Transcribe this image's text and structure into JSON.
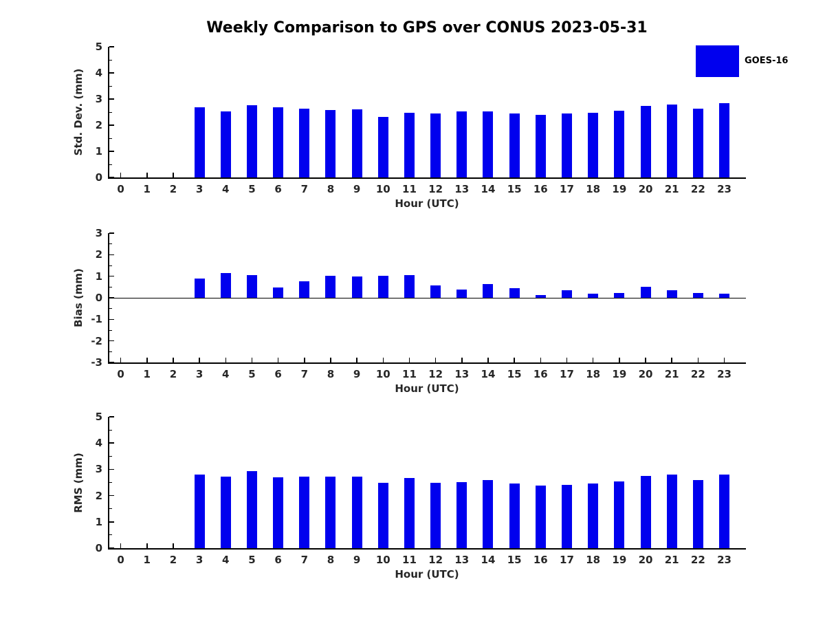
{
  "title": "Weekly Comparison to GPS over CONUS 2023-05-31",
  "legend": {
    "label": "GOES-16",
    "swatch_color": "#0000ee",
    "position": "top-right"
  },
  "colors": {
    "bar": "#0000ee",
    "axis": "#000000",
    "tick_text": "#262626",
    "title_text": "#000000",
    "background": "#ffffff"
  },
  "chart_data": [
    {
      "type": "bar",
      "ylabel": "Std. Dev. (mm)",
      "xlabel": "Hour (UTC)",
      "ylim": [
        0,
        5
      ],
      "yticks": [
        0,
        1,
        2,
        3,
        4,
        5
      ],
      "grid": false,
      "legend_position": "top-right",
      "categories": [
        "0",
        "1",
        "2",
        "3",
        "4",
        "5",
        "6",
        "7",
        "8",
        "9",
        "10",
        "11",
        "12",
        "13",
        "14",
        "15",
        "16",
        "17",
        "18",
        "19",
        "20",
        "21",
        "22",
        "23"
      ],
      "series": [
        {
          "name": "GOES-16",
          "values": [
            null,
            null,
            null,
            2.68,
            2.53,
            2.77,
            2.68,
            2.64,
            2.57,
            2.6,
            2.32,
            2.47,
            2.45,
            2.53,
            2.52,
            2.44,
            2.4,
            2.44,
            2.47,
            2.55,
            2.73,
            2.79,
            2.63,
            2.84
          ]
        }
      ]
    },
    {
      "type": "bar",
      "ylabel": "Bias (mm)",
      "xlabel": "Hour (UTC)",
      "ylim": [
        -3,
        3
      ],
      "yticks": [
        -3,
        -2,
        -1,
        0,
        1,
        2,
        3
      ],
      "grid": false,
      "zero_line": true,
      "categories": [
        "0",
        "1",
        "2",
        "3",
        "4",
        "5",
        "6",
        "7",
        "8",
        "9",
        "10",
        "11",
        "12",
        "13",
        "14",
        "15",
        "16",
        "17",
        "18",
        "19",
        "20",
        "21",
        "22",
        "23"
      ],
      "series": [
        {
          "name": "GOES-16",
          "values": [
            null,
            null,
            null,
            0.9,
            1.15,
            1.06,
            0.48,
            0.78,
            1.02,
            1.0,
            1.03,
            1.06,
            0.56,
            0.38,
            0.64,
            0.45,
            0.14,
            0.35,
            0.2,
            0.23,
            0.5,
            0.34,
            0.22,
            0.19
          ]
        }
      ]
    },
    {
      "type": "bar",
      "ylabel": "RMS (mm)",
      "xlabel": "Hour (UTC)",
      "ylim": [
        0,
        5
      ],
      "yticks": [
        0,
        1,
        2,
        3,
        4,
        5
      ],
      "grid": false,
      "categories": [
        "0",
        "1",
        "2",
        "3",
        "4",
        "5",
        "6",
        "7",
        "8",
        "9",
        "10",
        "11",
        "12",
        "13",
        "14",
        "15",
        "16",
        "17",
        "18",
        "19",
        "20",
        "21",
        "22",
        "23"
      ],
      "series": [
        {
          "name": "GOES-16",
          "values": [
            null,
            null,
            null,
            2.79,
            2.72,
            2.92,
            2.7,
            2.72,
            2.72,
            2.72,
            2.48,
            2.67,
            2.48,
            2.51,
            2.59,
            2.45,
            2.38,
            2.42,
            2.45,
            2.55,
            2.75,
            2.79,
            2.59,
            2.81
          ]
        }
      ]
    }
  ]
}
